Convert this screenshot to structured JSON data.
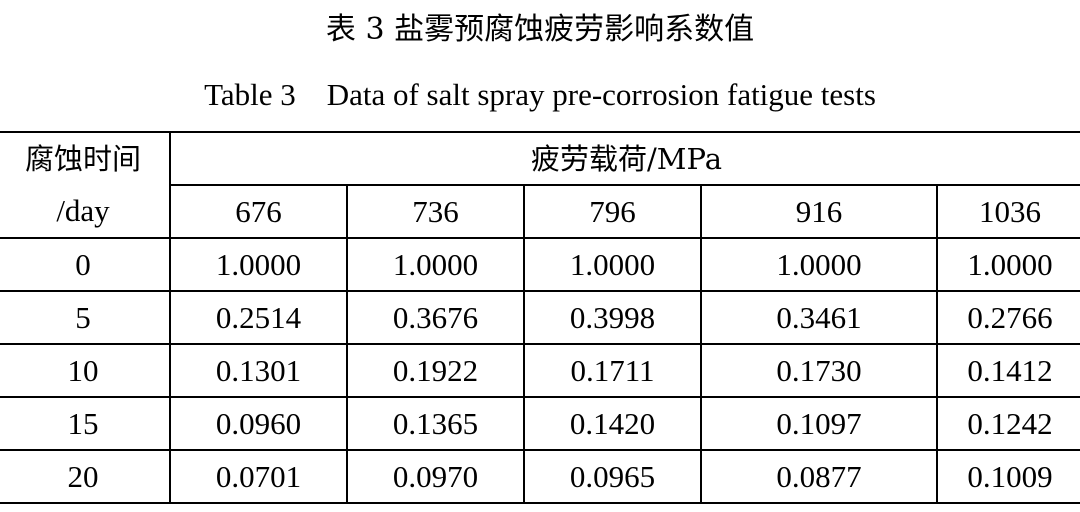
{
  "caption": {
    "chinese": "表 3 盐雾预腐蚀疲劳影响系数值",
    "english": "Table 3    Data of salt spray pre-corrosion fatigue tests"
  },
  "table": {
    "stub_header_line1": "腐蚀时间",
    "stub_header_line2": "/day",
    "load_header": "疲劳载荷/MPa",
    "loads": [
      "676",
      "736",
      "796",
      "916",
      "1036"
    ],
    "rows": [
      {
        "time": "0",
        "values": [
          "1.0000",
          "1.0000",
          "1.0000",
          "1.0000",
          "1.0000"
        ]
      },
      {
        "time": "5",
        "values": [
          "0.2514",
          "0.3676",
          "0.3998",
          "0.3461",
          "0.2766"
        ]
      },
      {
        "time": "10",
        "values": [
          "0.1301",
          "0.1922",
          "0.1711",
          "0.1730",
          "0.1412"
        ]
      },
      {
        "time": "15",
        "values": [
          "0.0960",
          "0.1365",
          "0.1420",
          "0.1097",
          "0.1242"
        ]
      },
      {
        "time": "20",
        "values": [
          "0.0701",
          "0.0970",
          "0.0965",
          "0.0877",
          "0.1009"
        ]
      }
    ]
  }
}
